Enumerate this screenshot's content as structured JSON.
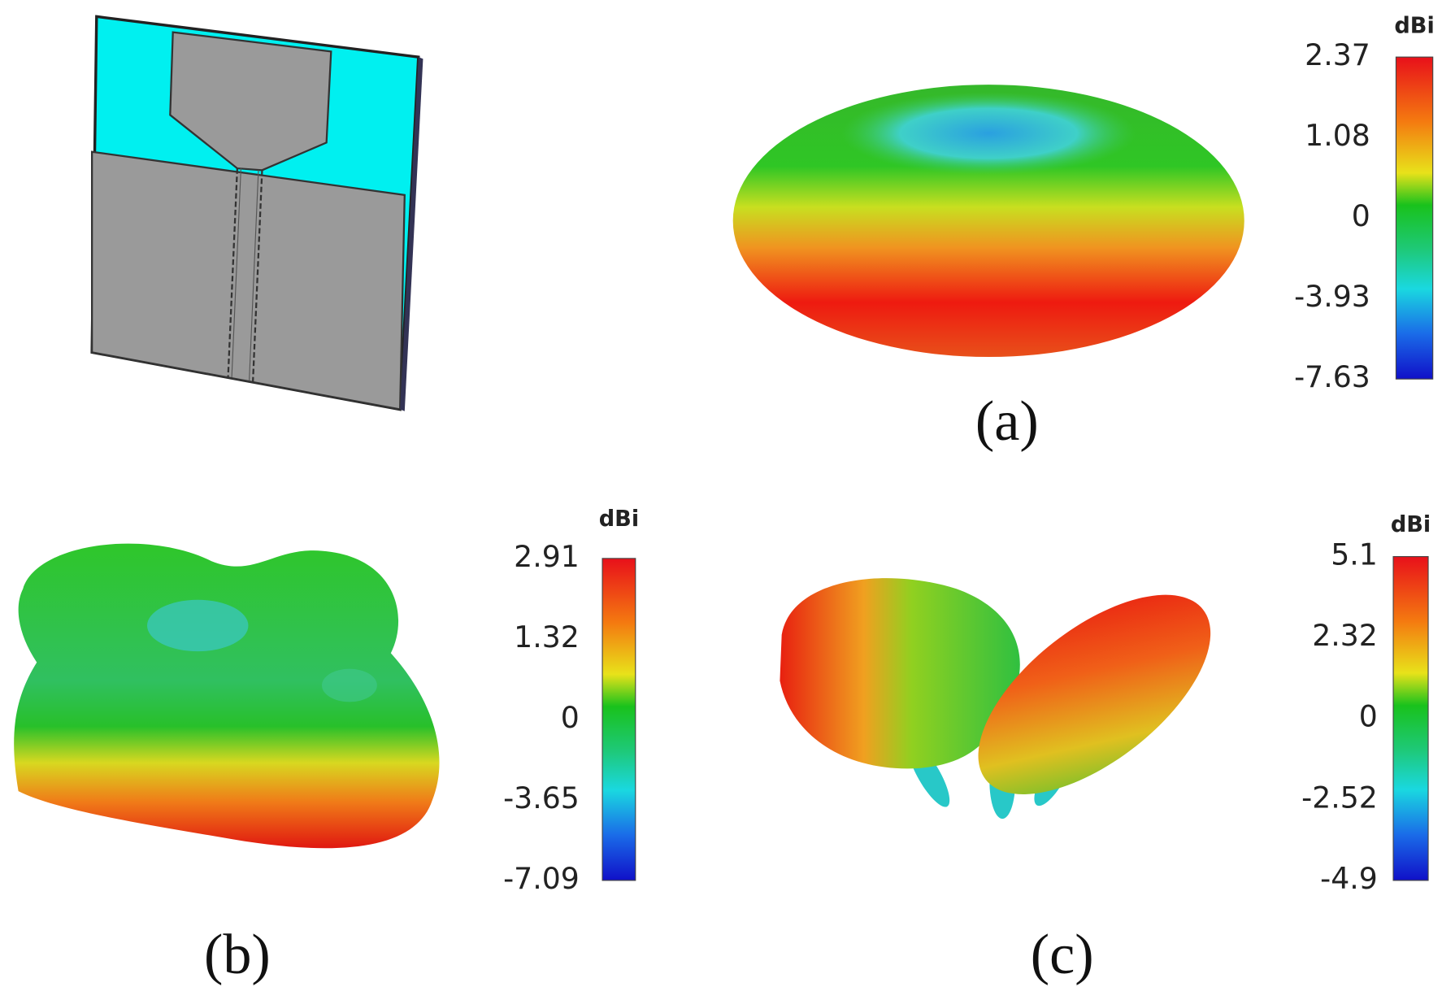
{
  "panels": [
    {
      "label": "(a)",
      "colorbar": {
        "unit": "dBi",
        "ticks": [
          "2.37",
          "1.08",
          "0",
          "-3.93",
          "-7.63"
        ]
      }
    },
    {
      "label": "(b)",
      "colorbar": {
        "unit": "dBi",
        "ticks": [
          "2.91",
          "1.32",
          "0",
          "-3.65",
          "-7.09"
        ]
      }
    },
    {
      "label": "(c)",
      "colorbar": {
        "unit": "dBi",
        "ticks": [
          "5.1",
          "2.32",
          "0",
          "-2.52",
          "-4.9"
        ]
      }
    }
  ]
}
